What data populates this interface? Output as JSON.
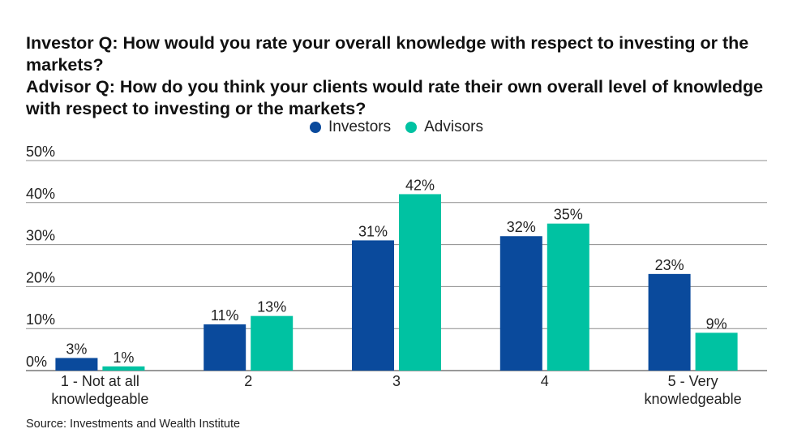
{
  "title_lines": [
    "Investor Q: How would you rate your overall knowledge with respect to investing or the markets?",
    "Advisor Q: How do you think your clients would rate their own overall level of knowledge with respect to investing or the markets?"
  ],
  "source": "Source: Investments and Wealth Institute",
  "colors": {
    "investors": "#0a4a9c",
    "advisors": "#00c2a2",
    "grid": "#8c8c8c"
  },
  "chart_data": {
    "type": "bar",
    "title": "Investor Q: How would you rate your overall knowledge with respect to investing or the markets? Advisor Q: How do you think your clients would rate their own overall level of knowledge with respect to investing or the markets?",
    "categories": [
      [
        "1 - Not at all",
        "knowledgeable"
      ],
      [
        "2"
      ],
      [
        "3"
      ],
      [
        "4"
      ],
      [
        "5 - Very",
        "knowledgeable"
      ]
    ],
    "series": [
      {
        "name": "Investors",
        "values": [
          3,
          11,
          31,
          32,
          23
        ],
        "labels": [
          "3%",
          "11%",
          "31%",
          "32%",
          "23%"
        ]
      },
      {
        "name": "Advisors",
        "values": [
          1,
          13,
          42,
          35,
          9
        ],
        "labels": [
          "1%",
          "13%",
          "42%",
          "35%",
          "9%"
        ]
      }
    ],
    "yticks": [
      "0%",
      "10%",
      "20%",
      "30%",
      "40%",
      "50%"
    ],
    "ylim": [
      0,
      50
    ],
    "legend_position": "top-center",
    "grid": true
  }
}
